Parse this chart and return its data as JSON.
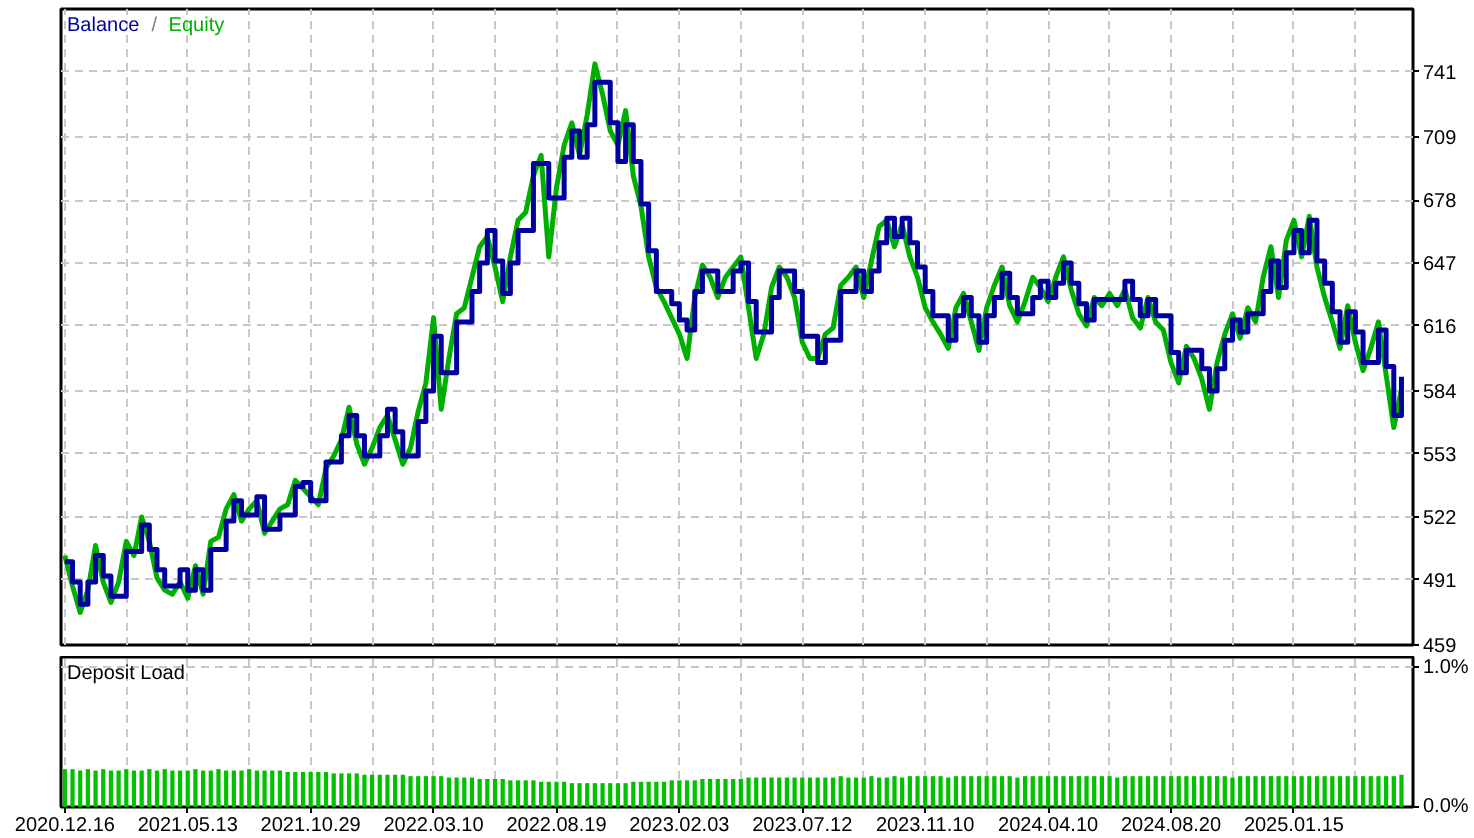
{
  "chart_data": [
    {
      "type": "line",
      "legend": "top left",
      "annotations": [
        "/"
      ],
      "ylim": [
        459,
        772
      ],
      "yticks": [
        459,
        491,
        522,
        553,
        584,
        616,
        647,
        678,
        709,
        741
      ],
      "grid": true,
      "tick_labels": "y",
      "categories": [
        "2020.12.16",
        null,
        null,
        null,
        null,
        null,
        null,
        null,
        null,
        null,
        null,
        null,
        null,
        null,
        null,
        null,
        "2021.05.13",
        null,
        null,
        null,
        null,
        null,
        null,
        null,
        null,
        null,
        null,
        null,
        null,
        null,
        null,
        null,
        "2021.10.29",
        null,
        null,
        null,
        null,
        null,
        null,
        null,
        null,
        null,
        null,
        null,
        null,
        null,
        null,
        null,
        "2022.03.10",
        null,
        null,
        null,
        null,
        null,
        null,
        null,
        null,
        null,
        null,
        null,
        null,
        null,
        null,
        null,
        "2022.08.19",
        null,
        null,
        null,
        null,
        null,
        null,
        null,
        null,
        null,
        null,
        null,
        null,
        null,
        null,
        null,
        "2023.02.03",
        null,
        null,
        null,
        null,
        null,
        null,
        null,
        null,
        null,
        null,
        null,
        null,
        null,
        null,
        null,
        "2023.07.12",
        null,
        null,
        null,
        null,
        null,
        null,
        null,
        null,
        null,
        null,
        null,
        null,
        null,
        null,
        null,
        "2023.11.10",
        null,
        null,
        null,
        null,
        null,
        null,
        null,
        null,
        null,
        null,
        null,
        null,
        null,
        null,
        null,
        "2024.04.10",
        null,
        null,
        null,
        null,
        null,
        null,
        null,
        null,
        null,
        null,
        null,
        null,
        null,
        null,
        null,
        "2024.08.20",
        null,
        null,
        null,
        null,
        null,
        null,
        null,
        null,
        null,
        null,
        null,
        null,
        null,
        null,
        null,
        "2025.01.15",
        null,
        null,
        null,
        null,
        null,
        null,
        null,
        null,
        null,
        null,
        null,
        null,
        null,
        null,
        null
      ],
      "series": [
        {
          "name": "Balance",
          "type": "step",
          "color": "#0000a0",
          "values": [
            500,
            490,
            479,
            490,
            503,
            493,
            483,
            483,
            505,
            505,
            518,
            506,
            496,
            488,
            488,
            496,
            486,
            496,
            486,
            506,
            506,
            520,
            530,
            523,
            523,
            532,
            516,
            516,
            523,
            523,
            537,
            539,
            530,
            530,
            549,
            549,
            562,
            572,
            562,
            552,
            552,
            562,
            575,
            564,
            552,
            552,
            569,
            584,
            611,
            593,
            593,
            618,
            618,
            633,
            647,
            663,
            648,
            632,
            647,
            663,
            663,
            696,
            696,
            679,
            679,
            699,
            712,
            699,
            715,
            736,
            736,
            716,
            697,
            715,
            697,
            676,
            653,
            633,
            633,
            627,
            619,
            614,
            633,
            643,
            643,
            633,
            633,
            643,
            647,
            628,
            613,
            613,
            630,
            643,
            643,
            633,
            611,
            611,
            598,
            609,
            609,
            633,
            633,
            643,
            633,
            643,
            657,
            669,
            660,
            669,
            657,
            645,
            633,
            621,
            621,
            609,
            621,
            630,
            621,
            608,
            621,
            630,
            642,
            630,
            622,
            622,
            630,
            638,
            630,
            637,
            647,
            637,
            627,
            619,
            629,
            629,
            629,
            629,
            638,
            629,
            621,
            629,
            621,
            621,
            603,
            593,
            604,
            604,
            595,
            584,
            595,
            609,
            619,
            613,
            622,
            622,
            633,
            648,
            635,
            652,
            663,
            652,
            668,
            648,
            637,
            623,
            608,
            623,
            613,
            598,
            598,
            614,
            596,
            572,
            591,
            null
          ]
        },
        {
          "name": "Equity",
          "type": "line",
          "color": "#00b000",
          "values": [
            503,
            488,
            475,
            486,
            508,
            490,
            480,
            490,
            510,
            503,
            522,
            510,
            492,
            486,
            484,
            490,
            482,
            498,
            484,
            510,
            512,
            526,
            533,
            520,
            526,
            530,
            514,
            520,
            526,
            528,
            540,
            536,
            532,
            528,
            546,
            552,
            560,
            576,
            558,
            548,
            556,
            566,
            572,
            560,
            548,
            556,
            574,
            588,
            620,
            575,
            600,
            622,
            625,
            640,
            655,
            660,
            645,
            628,
            650,
            668,
            672,
            690,
            700,
            650,
            684,
            705,
            716,
            700,
            720,
            745,
            730,
            712,
            705,
            722,
            690,
            675,
            650,
            635,
            628,
            620,
            612,
            600,
            630,
            646,
            640,
            630,
            640,
            645,
            650,
            625,
            600,
            612,
            635,
            645,
            640,
            630,
            608,
            600,
            600,
            612,
            615,
            636,
            640,
            645,
            630,
            648,
            665,
            668,
            655,
            666,
            650,
            640,
            625,
            618,
            612,
            605,
            625,
            632,
            618,
            604,
            625,
            636,
            645,
            626,
            618,
            628,
            640,
            635,
            628,
            640,
            650,
            634,
            622,
            616,
            630,
            626,
            632,
            626,
            634,
            620,
            615,
            630,
            618,
            614,
            598,
            588,
            606,
            600,
            590,
            575,
            598,
            612,
            622,
            610,
            625,
            618,
            640,
            655,
            630,
            658,
            668,
            650,
            670,
            645,
            630,
            618,
            605,
            626,
            608,
            594,
            605,
            618,
            592,
            566,
            585,
            null
          ]
        }
      ]
    },
    {
      "type": "bar",
      "title": "Deposit Load",
      "color": "#00c000",
      "ylim": [
        0,
        1.07
      ],
      "yticks": [
        {
          "value": 0,
          "label": "0.0%"
        },
        {
          "value": 1,
          "label": "1.0%"
        }
      ],
      "grid": true,
      "categories": [
        "2020.12.16",
        null,
        null,
        null,
        null,
        null,
        null,
        null,
        null,
        null,
        null,
        null,
        null,
        null,
        null,
        null,
        "2021.05.13",
        null,
        null,
        null,
        null,
        null,
        null,
        null,
        null,
        null,
        null,
        null,
        null,
        null,
        null,
        null,
        "2021.10.29",
        null,
        null,
        null,
        null,
        null,
        null,
        null,
        null,
        null,
        null,
        null,
        null,
        null,
        null,
        null,
        "2022.03.10",
        null,
        null,
        null,
        null,
        null,
        null,
        null,
        null,
        null,
        null,
        null,
        null,
        null,
        null,
        null,
        "2022.08.19",
        null,
        null,
        null,
        null,
        null,
        null,
        null,
        null,
        null,
        null,
        null,
        null,
        null,
        null,
        null,
        "2023.02.03",
        null,
        null,
        null,
        null,
        null,
        null,
        null,
        null,
        null,
        null,
        null,
        null,
        null,
        null,
        null,
        "2023.07.12",
        null,
        null,
        null,
        null,
        null,
        null,
        null,
        null,
        null,
        null,
        null,
        null,
        null,
        null,
        null,
        "2023.11.10",
        null,
        null,
        null,
        null,
        null,
        null,
        null,
        null,
        null,
        null,
        null,
        null,
        null,
        null,
        null,
        "2024.04.10",
        null,
        null,
        null,
        null,
        null,
        null,
        null,
        null,
        null,
        null,
        null,
        null,
        null,
        null,
        null,
        "2024.08.20",
        null,
        null,
        null,
        null,
        null,
        null,
        null,
        null,
        null,
        null,
        null,
        null,
        null,
        null,
        null,
        "2025.01.15",
        null,
        null,
        null,
        null,
        null,
        null,
        null,
        null,
        null,
        null,
        null,
        null,
        null,
        null,
        null
      ],
      "values": [
        0.27,
        0.27,
        0.26,
        0.27,
        0.26,
        0.27,
        0.26,
        0.26,
        0.27,
        0.26,
        0.26,
        0.27,
        0.26,
        0.27,
        0.26,
        0.26,
        0.26,
        0.27,
        0.26,
        0.26,
        0.27,
        0.26,
        0.26,
        0.26,
        0.27,
        0.26,
        0.26,
        0.26,
        0.26,
        0.25,
        0.25,
        0.25,
        0.25,
        0.25,
        0.25,
        0.24,
        0.24,
        0.24,
        0.24,
        0.23,
        0.23,
        0.23,
        0.23,
        0.23,
        0.23,
        0.22,
        0.22,
        0.22,
        0.22,
        0.22,
        0.21,
        0.21,
        0.21,
        0.21,
        0.2,
        0.2,
        0.2,
        0.2,
        0.19,
        0.19,
        0.19,
        0.19,
        0.18,
        0.18,
        0.18,
        0.18,
        0.17,
        0.17,
        0.17,
        0.17,
        0.17,
        0.17,
        0.17,
        0.17,
        0.18,
        0.18,
        0.18,
        0.18,
        0.18,
        0.19,
        0.19,
        0.19,
        0.19,
        0.2,
        0.2,
        0.2,
        0.2,
        0.2,
        0.2,
        0.21,
        0.21,
        0.21,
        0.21,
        0.21,
        0.21,
        0.21,
        0.21,
        0.21,
        0.21,
        0.21,
        0.21,
        0.22,
        0.21,
        0.21,
        0.21,
        0.22,
        0.21,
        0.21,
        0.22,
        0.21,
        0.22,
        0.22,
        0.22,
        0.22,
        0.22,
        0.21,
        0.22,
        0.22,
        0.22,
        0.22,
        0.22,
        0.22,
        0.22,
        0.22,
        0.21,
        0.22,
        0.22,
        0.22,
        0.22,
        0.22,
        0.22,
        0.22,
        0.22,
        0.22,
        0.22,
        0.22,
        0.22,
        0.21,
        0.22,
        0.22,
        0.22,
        0.22,
        0.22,
        0.22,
        0.22,
        0.22,
        0.22,
        0.22,
        0.22,
        0.22,
        0.22,
        0.22,
        0.21,
        0.22,
        0.22,
        0.22,
        0.22,
        0.22,
        0.22,
        0.22,
        0.22,
        0.22,
        0.22,
        0.22,
        0.22,
        0.22,
        0.22,
        0.22,
        0.22,
        0.22,
        0.22,
        0.22,
        0.22,
        0.22,
        0.23,
        null
      ]
    }
  ]
}
